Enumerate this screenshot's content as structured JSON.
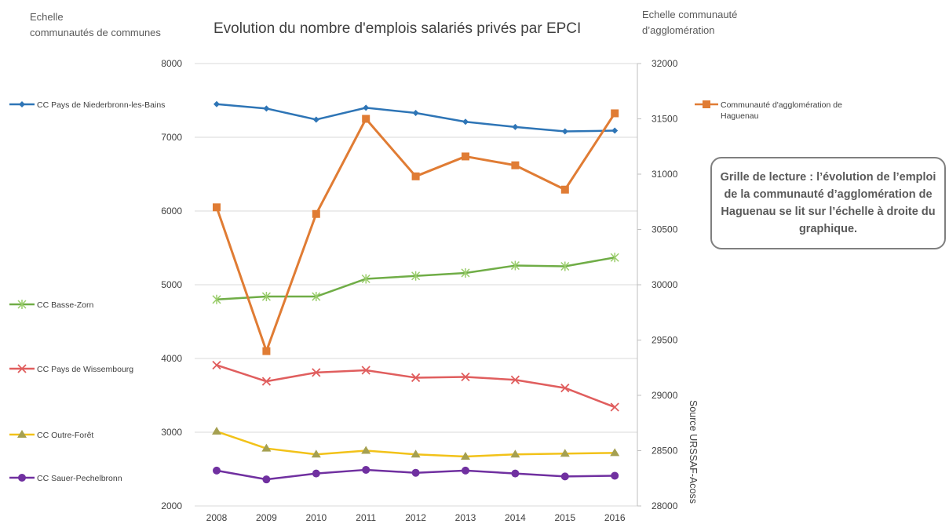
{
  "header": {
    "left_scale_label": "Echelle\ncommunautés de communes",
    "right_scale_label": "Echelle communauté\nd’agglomération"
  },
  "callout": {
    "text": "Grille de lecture : l’évolution de l’emploi de la communauté d’agglomération de Haguenau se lit sur l’échelle à droite du graphique."
  },
  "source": "Source URSSAF-Acoss",
  "chart_data": {
    "type": "line",
    "title": "Evolution du nombre d'emplois salariés privés par EPCI",
    "xlabel": "",
    "ylabel": "",
    "x": [
      2008,
      2009,
      2010,
      2011,
      2012,
      2013,
      2014,
      2015,
      2016
    ],
    "x_tick_labels": [
      "2008",
      "2009",
      "2010",
      "2011",
      "2012",
      "2013",
      "2014",
      "2015",
      "2016"
    ],
    "y_left": {
      "range": [
        2000,
        8000
      ],
      "ticks": [
        "2000",
        "3000",
        "4000",
        "5000",
        "6000",
        "7000",
        "8000"
      ]
    },
    "y_right": {
      "range": [
        28000,
        32000
      ],
      "ticks": [
        "28000",
        "28500",
        "29000",
        "29500",
        "30000",
        "30500",
        "31000",
        "31500",
        "32000"
      ]
    },
    "grid": "horizontal",
    "series": [
      {
        "name": "CC Pays de Niederbronn-les-Bains",
        "axis": "left",
        "color": "#2e75b6",
        "marker": "diamond",
        "values": [
          7450,
          7390,
          7240,
          7400,
          7330,
          7210,
          7140,
          7080,
          7090
        ]
      },
      {
        "name": "CC Basse-Zorn",
        "axis": "left",
        "color": "#70ad47",
        "marker": "star",
        "values": [
          4800,
          4840,
          4840,
          5080,
          5120,
          5160,
          5260,
          5250,
          5370
        ]
      },
      {
        "name": "CC Pays de Wissembourg",
        "axis": "left",
        "color": "#e05e5e",
        "marker": "x",
        "values": [
          3910,
          3690,
          3810,
          3840,
          3740,
          3750,
          3710,
          3600,
          3340
        ]
      },
      {
        "name": "CC Outre-Forêt",
        "axis": "left",
        "color": "#f2c219",
        "marker": "triangle",
        "values": [
          3010,
          2780,
          2700,
          2750,
          2700,
          2670,
          2700,
          2710,
          2720
        ]
      },
      {
        "name": "CC Sauer-Pechelbronn",
        "axis": "left",
        "color": "#7030a0",
        "marker": "circle",
        "values": [
          2480,
          2360,
          2440,
          2490,
          2450,
          2480,
          2440,
          2400,
          2410
        ]
      },
      {
        "name": "Communauté d'agglomération de Haguenau",
        "axis": "right",
        "color": "#e07c34",
        "marker": "square",
        "values": [
          30700,
          29400,
          30640,
          31500,
          30980,
          31160,
          31080,
          30860,
          31550
        ]
      }
    ],
    "legend": "beside each series on the left; agglomeration entry top-right"
  }
}
